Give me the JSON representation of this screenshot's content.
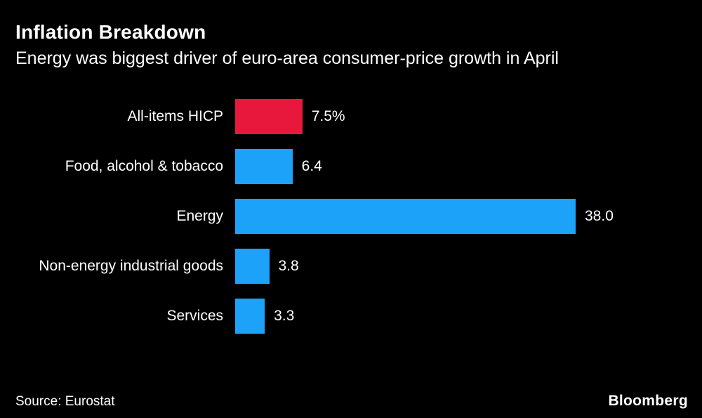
{
  "chart_data": {
    "type": "bar",
    "orientation": "horizontal",
    "title": "Inflation Breakdown",
    "subtitle": "Energy was biggest driver of euro-area consumer-price growth in April",
    "categories": [
      "All-items HICP",
      "Food, alcohol & tobacco",
      "Energy",
      "Non-energy industrial goods",
      "Services"
    ],
    "values": [
      7.5,
      6.4,
      38.0,
      3.8,
      3.3
    ],
    "value_labels": [
      "7.5%",
      "6.4",
      "38.0",
      "3.8",
      "3.3"
    ],
    "bar_colors": [
      "#e8183d",
      "#1da2f9",
      "#1da2f9",
      "#1da2f9",
      "#1da2f9"
    ],
    "xlim": [
      0,
      38
    ],
    "grid": false,
    "legend": false,
    "background_color": "#000000",
    "text_color": "#ffffff",
    "source": "Source: Eurostat"
  },
  "branding": {
    "logo": "Bloomberg"
  }
}
